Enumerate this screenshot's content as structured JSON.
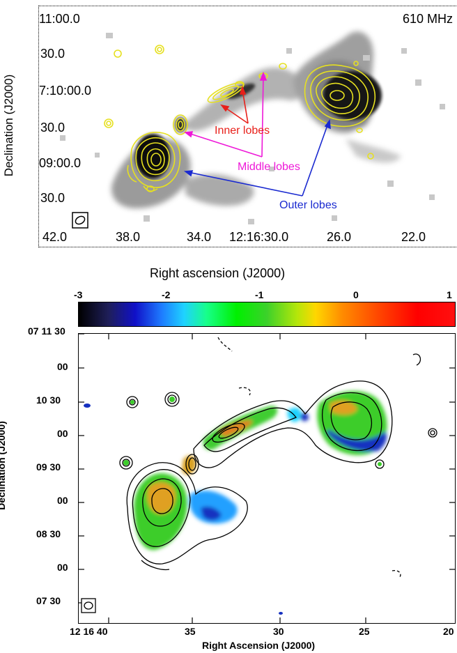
{
  "top": {
    "frequency_label": "610 MHz",
    "y_ticks": [
      "11:00.0",
      "30.0",
      "7:10:00.0",
      "30.0",
      "09:00.0",
      "30.0"
    ],
    "x_ticks": [
      "42.0",
      "38.0",
      "34.0",
      "12:16:30.0",
      "26.0",
      "22.0"
    ],
    "y_axis_label": "Declination (J2000)",
    "x_axis_label": "Right ascension (J2000)",
    "annotations": {
      "inner": "Inner lobes",
      "middle": "Middle lobes",
      "outer": "Outer lobes"
    },
    "colors": {
      "inner": "#e8201a",
      "middle": "#ee18d8",
      "outer": "#1a2ad0",
      "contour": "#e6e020"
    }
  },
  "bottom": {
    "colorbar_ticks": [
      "-3",
      "-2",
      "-1",
      "0",
      "1"
    ],
    "y_ticks": [
      "07 11 30",
      "00",
      "10 30",
      "00",
      "09 30",
      "00",
      "08 30",
      "00",
      "07 30"
    ],
    "x_ticks": [
      "12 16 40",
      "35",
      "30",
      "25",
      "20"
    ],
    "y_axis_label": "Declination (J2000)",
    "x_axis_label": "Right Ascension (J2000)"
  }
}
